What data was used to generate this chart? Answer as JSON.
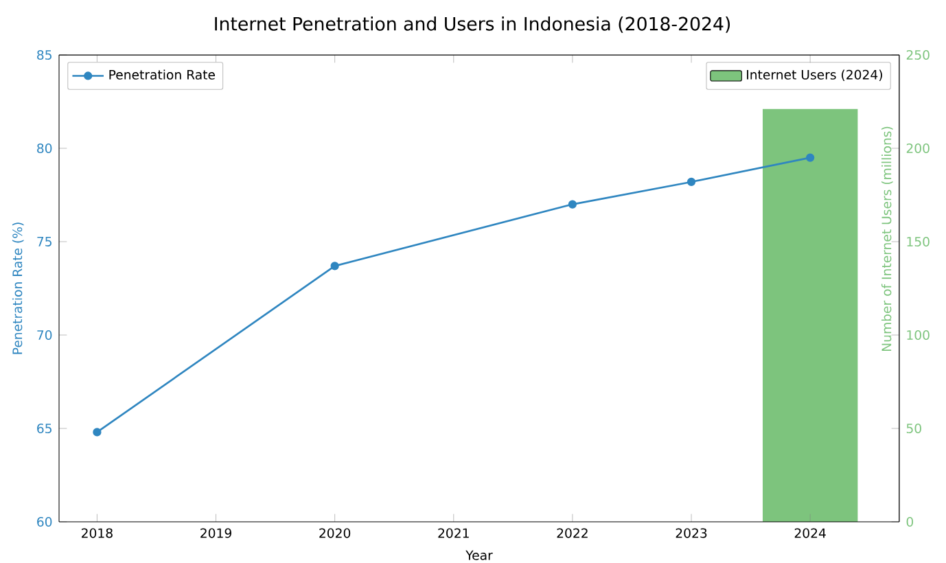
{
  "chart_data": {
    "type": "line",
    "title": "Internet Penetration and Users in Indonesia (2018-2024)",
    "xlabel": "Year",
    "ylabel": "Penetration Rate (%)",
    "y2label": "Number of Internet Users (millions)",
    "xlim": [
      2017.68,
      2024.75
    ],
    "xticks": [
      2018,
      2019,
      2020,
      2021,
      2022,
      2023,
      2024
    ],
    "ylim": [
      60,
      85
    ],
    "yticks": [
      60,
      65,
      70,
      75,
      80,
      85
    ],
    "y2lim": [
      0,
      250
    ],
    "y2ticks": [
      0,
      50,
      100,
      150,
      200,
      250
    ],
    "legend": "top",
    "marker": "circle",
    "line_style": "solid",
    "series": [
      {
        "name": "Penetration Rate",
        "color": "#2f86c0",
        "x": [
          2018,
          2020,
          2022,
          2023,
          2024
        ],
        "values": [
          64.8,
          73.7,
          77.0,
          78.2,
          79.5
        ]
      },
      {
        "name": "Internet Users (2024)",
        "type": "bar",
        "axis": "y2",
        "color": "#7dc47d",
        "x": [
          2024
        ],
        "values": [
          221
        ]
      }
    ]
  }
}
